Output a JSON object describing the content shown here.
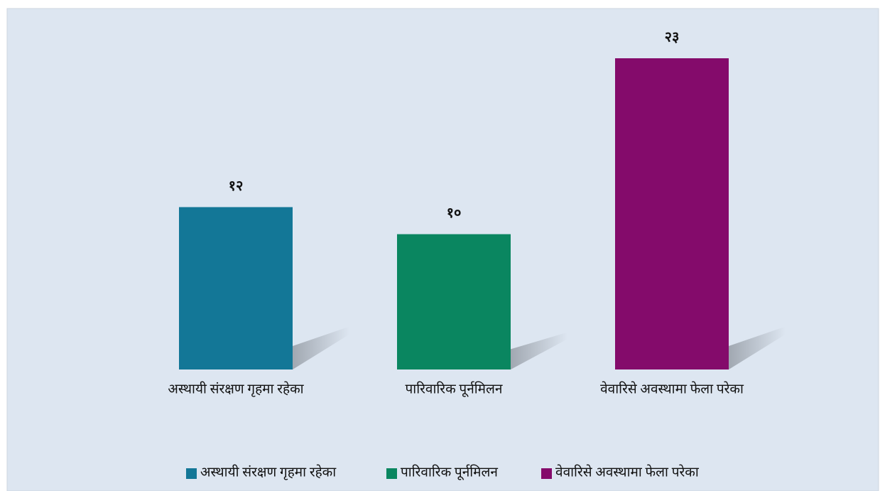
{
  "chart_data": {
    "type": "bar",
    "categories": [
      "अस्थायी संरक्षण गृहमा रहेका",
      "पारिवारिक पूर्नमिलन",
      "वेवारिसे अवस्थामा फेला परेका"
    ],
    "values": [
      12,
      10,
      23
    ],
    "value_labels": [
      "१२",
      "१०",
      "२३"
    ],
    "colors": [
      "#137797",
      "#0a8660",
      "#840b6b"
    ],
    "legend": "bottom"
  }
}
